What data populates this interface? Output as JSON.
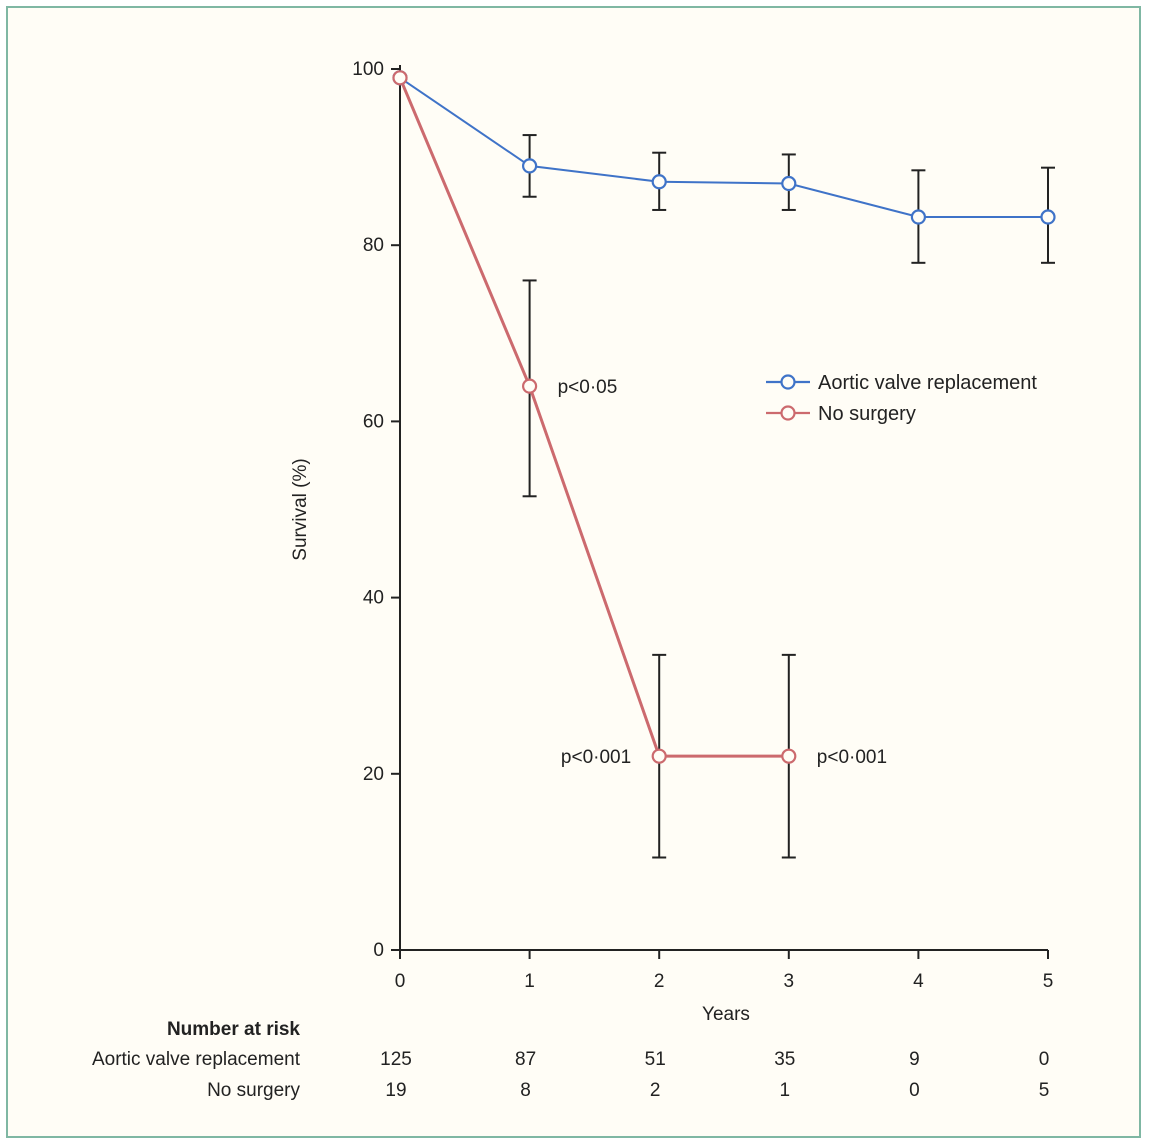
{
  "chart_data": {
    "type": "line",
    "xlabel": "Years",
    "ylabel": "Survival (%)",
    "xlim": [
      0,
      5
    ],
    "ylim": [
      0,
      100
    ],
    "x_ticks": [
      "0",
      "1",
      "2",
      "3",
      "4",
      "5"
    ],
    "y_ticks": [
      "0",
      "20",
      "40",
      "60",
      "80",
      "100"
    ],
    "grid": false,
    "legend_position": "right",
    "series": [
      {
        "name": "Aortic valve replacement",
        "color": "#3f73c8",
        "points": [
          {
            "x": 0,
            "y": 99
          },
          {
            "x": 1,
            "y": 89,
            "ci": [
              85.5,
              92.5
            ]
          },
          {
            "x": 2,
            "y": 87.2,
            "ci": [
              84,
              90.5
            ]
          },
          {
            "x": 3,
            "y": 87,
            "ci": [
              84,
              90.3
            ]
          },
          {
            "x": 4,
            "y": 83.2,
            "ci": [
              78,
              88.5
            ]
          },
          {
            "x": 5,
            "y": 83.2,
            "ci": [
              78,
              88.8
            ]
          }
        ]
      },
      {
        "name": "No surgery",
        "color": "#cc6a6e",
        "points": [
          {
            "x": 0,
            "y": 99
          },
          {
            "x": 1,
            "y": 64,
            "ci": [
              51.5,
              76
            ]
          },
          {
            "x": 2,
            "y": 22,
            "ci": [
              10.5,
              33.5
            ]
          },
          {
            "x": 3,
            "y": 22,
            "ci": [
              10.5,
              33.5
            ]
          }
        ]
      }
    ],
    "annotations": [
      {
        "text": "p<0·05",
        "x": 1,
        "y": 64,
        "side": "right"
      },
      {
        "text": "p<0·001",
        "x": 2,
        "y": 22,
        "side": "left"
      },
      {
        "text": "p<0·001",
        "x": 3,
        "y": 22,
        "side": "right"
      }
    ],
    "number_at_risk": {
      "title": "Number at risk",
      "rows": [
        {
          "label": "Aortic valve replacement",
          "values": [
            "125",
            "87",
            "51",
            "35",
            "9",
            "0"
          ]
        },
        {
          "label": "No surgery",
          "values": [
            "19",
            "8",
            "2",
            "1",
            "0",
            "5"
          ]
        }
      ]
    }
  }
}
